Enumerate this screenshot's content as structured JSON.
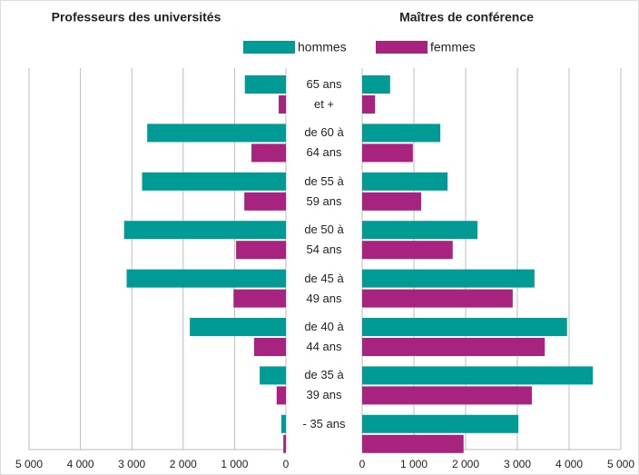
{
  "chart_data": [
    {
      "type": "bar",
      "orientation": "horizontal",
      "invert_x": true,
      "grid": true,
      "title": "Professeurs des universités",
      "categories": [
        "65 ans\net +",
        "de 60 à\n64 ans",
        "de 55 à\n59 ans",
        "de 50 à\n54 ans",
        "de 45 à\n49 ans",
        "de 40 à\n44 ans",
        "de 35 à\n39 ans",
        "- 35 ans"
      ],
      "series": [
        {
          "name": "hommes",
          "color": "#009b95",
          "values": [
            800,
            2700,
            2800,
            3150,
            3100,
            1870,
            510,
            90
          ]
        },
        {
          "name": "femmes",
          "color": "#a8237f",
          "values": [
            140,
            670,
            810,
            970,
            1020,
            620,
            180,
            50
          ]
        }
      ],
      "xlim": [
        0,
        5000
      ],
      "xticks": [
        0,
        {
          "value": 1000,
          "label": "1 000"
        },
        {
          "value": 2000,
          "label": "2 000"
        },
        {
          "value": 3000,
          "label": "3 000"
        },
        {
          "value": 4000,
          "label": "4 000"
        },
        {
          "value": 5000,
          "label": "5 000"
        }
      ]
    },
    {
      "type": "bar",
      "orientation": "horizontal",
      "invert_x": false,
      "grid": true,
      "title": "Maîtres de conférence",
      "series": [
        {
          "name": "hommes",
          "color": "#009b95",
          "values": [
            540,
            1510,
            1650,
            2230,
            3330,
            3960,
            4460,
            3020
          ]
        },
        {
          "name": "femmes",
          "color": "#a8237f",
          "values": [
            250,
            980,
            1140,
            1750,
            2910,
            3530,
            3280,
            1960
          ]
        }
      ],
      "xlim": [
        0,
        5000
      ],
      "xticks": [
        0,
        {
          "value": 1000,
          "label": "1 000"
        },
        {
          "value": 2000,
          "label": "2 000"
        },
        {
          "value": 3000,
          "label": "3 000"
        },
        {
          "value": 4000,
          "label": "4 000"
        },
        {
          "value": 5000,
          "label": "5 000"
        }
      ]
    }
  ]
}
